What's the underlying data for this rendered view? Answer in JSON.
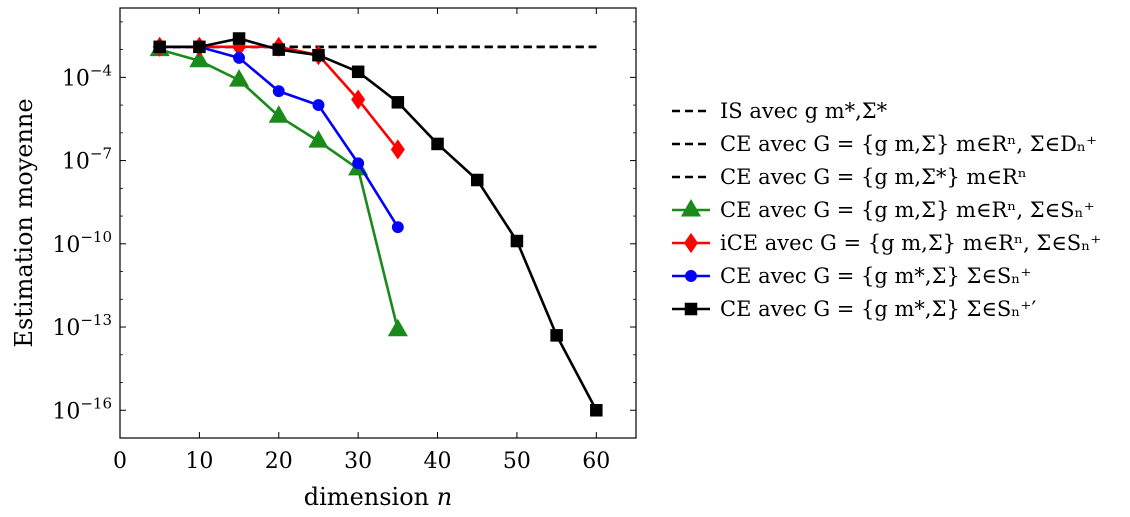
{
  "chart_data": {
    "type": "line",
    "xlabel": "dimension n",
    "ylabel": "Estimation moyenne",
    "xlim": [
      0,
      65
    ],
    "ylim_log10": [
      -17,
      -1.5
    ],
    "y_scale": "log",
    "grid": false,
    "legend_placement": "right",
    "x_ticks": [
      0,
      10,
      20,
      30,
      40,
      50,
      60
    ],
    "x_tick_labels": [
      "0",
      "10",
      "20",
      "30",
      "40",
      "50",
      "60"
    ],
    "y_ticks_log10": [
      -4,
      -7,
      -10,
      -13,
      -16
    ],
    "y_tick_labels": [
      "10−4",
      "10−7",
      "10−10",
      "10−13",
      "10−16"
    ],
    "series": [
      {
        "name": "IS avec g m*,Σ*",
        "color": "#000000",
        "dash": "dashed",
        "marker": "none",
        "x": [
          5,
          60
        ],
        "log10_y": [
          -2.9,
          -2.9
        ]
      },
      {
        "name": "CE avec G = {g m,Σ} m∈Rⁿ, Σ∈Dₙ⁺",
        "color": "#000000",
        "dash": "dashed",
        "marker": "none",
        "x": [
          5,
          60
        ],
        "log10_y": [
          -2.9,
          -2.9
        ]
      },
      {
        "name": "CE avec G = {g m,Σ*} m∈Rⁿ",
        "color": "#000000",
        "dash": "dashed",
        "marker": "none",
        "x": [
          5,
          60
        ],
        "log10_y": [
          -2.9,
          -2.9
        ]
      },
      {
        "name": "CE avec G = {g m,Σ} m∈Rⁿ, Σ∈Sₙ⁺",
        "color": "#1a8a1a",
        "dash": "solid",
        "marker": "triangle",
        "x": [
          5,
          10,
          15,
          20,
          25,
          30,
          35
        ],
        "log10_y": [
          -3.0,
          -3.4,
          -4.1,
          -5.4,
          -6.3,
          -7.3,
          -13.1
        ]
      },
      {
        "name": "iCE avec G = {g m,Σ} m∈Rⁿ, Σ∈Sₙ⁺",
        "color": "#ff0000",
        "dash": "solid",
        "marker": "diamond",
        "x": [
          5,
          10,
          15,
          20,
          25,
          30,
          35
        ],
        "log10_y": [
          -2.9,
          -2.9,
          -2.9,
          -2.9,
          -3.2,
          -4.8,
          -6.6
        ]
      },
      {
        "name": "CE avec G = {g m*,Σ} Σ∈Sₙ⁺",
        "color": "#0000ff",
        "dash": "solid",
        "marker": "circle",
        "x": [
          5,
          10,
          15,
          20,
          25,
          30,
          35
        ],
        "log10_y": [
          -2.9,
          -2.9,
          -3.3,
          -4.5,
          -5.0,
          -7.1,
          -9.4
        ]
      },
      {
        "name": "CE avec G = {g m*,Σ} Σ∈Sₙ⁺′",
        "color": "#000000",
        "dash": "solid",
        "marker": "square",
        "x": [
          5,
          10,
          15,
          20,
          25,
          30,
          35,
          40,
          45,
          50,
          55,
          60
        ],
        "log10_y": [
          -2.9,
          -2.9,
          -2.6,
          -3.0,
          -3.2,
          -3.8,
          -4.9,
          -6.4,
          -7.7,
          -9.9,
          -13.3,
          -16.0
        ]
      }
    ]
  }
}
